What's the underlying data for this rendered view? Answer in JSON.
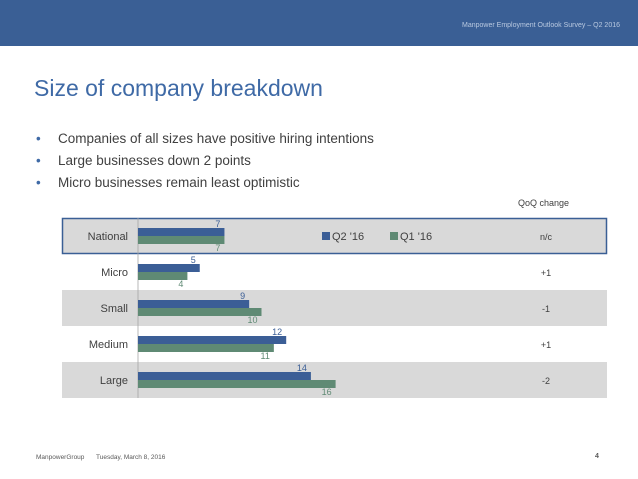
{
  "header": {
    "survey_label": "Manpower Employment Outlook Survey – Q2 2016"
  },
  "slide": {
    "title": "Size of company breakdown",
    "bullets": [
      "Companies of all sizes have positive hiring intentions",
      "Large businesses down 2 points",
      "Micro businesses remain least optimistic"
    ],
    "qoq_header": "QoQ change"
  },
  "chart_data": {
    "type": "bar",
    "orientation": "horizontal",
    "categories": [
      "National",
      "Micro",
      "Small",
      "Medium",
      "Large"
    ],
    "series": [
      {
        "name": "Q2 '16",
        "color": "#3b5e96",
        "values": [
          7,
          5,
          9,
          12,
          14
        ]
      },
      {
        "name": "Q1 '16",
        "color": "#5f8a74",
        "values": [
          7,
          4,
          10,
          11,
          16
        ]
      }
    ],
    "qoq_change": [
      "n/c",
      "+1",
      "-1",
      "+1",
      "-2"
    ],
    "xlim": [
      0,
      26
    ],
    "legend_position": "top-right",
    "row_shading": [
      true,
      false,
      true,
      false,
      true
    ],
    "highlighted_row": "National"
  },
  "colors": {
    "accent": "#3f6aa6",
    "header_band": "#3a5f95",
    "row_band": "#d9d9d9",
    "highlight_border": "#3a5f95"
  },
  "footer": {
    "company": "ManpowerGroup",
    "date": "Tuesday, March 8, 2016",
    "page_number": "4"
  }
}
